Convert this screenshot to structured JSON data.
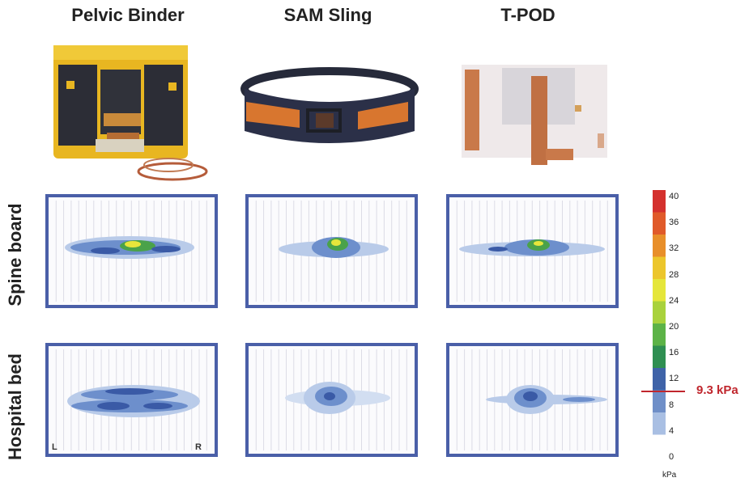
{
  "columns": [
    {
      "id": "pelvic-binder",
      "title": "Pelvic Binder"
    },
    {
      "id": "sam-sling",
      "title": "SAM Sling"
    },
    {
      "id": "t-pod",
      "title": "T-POD"
    }
  ],
  "rows": [
    {
      "id": "spine-board",
      "label": "Spine board"
    },
    {
      "id": "hospital-bed",
      "label": "Hospital bed"
    }
  ],
  "scale": {
    "ticks": [
      "40",
      "36",
      "32",
      "28",
      "24",
      "20",
      "16",
      "12",
      "8",
      "4",
      "0"
    ],
    "unit": "kPa",
    "colors": [
      "#d4312e",
      "#e05a2a",
      "#e88f2a",
      "#ecc62c",
      "#e5e63a",
      "#a9d23c",
      "#5cb347",
      "#2f8f52",
      "#3f63a8",
      "#6f8fc8",
      "#a9bfe3",
      "#ffffff"
    ]
  },
  "marker": {
    "label": "9.3 kPa",
    "value": 9.3,
    "color": "#c0262d"
  },
  "corners": {
    "left": "L",
    "right": "R"
  },
  "map_colors": {
    "frame": "#4a5fa8",
    "low": "#b9cbe9",
    "mid": "#6d8fcc",
    "high": "#3a5aa6",
    "peak_green": "#4aa24a",
    "peak_yellow": "#e7e63b"
  }
}
